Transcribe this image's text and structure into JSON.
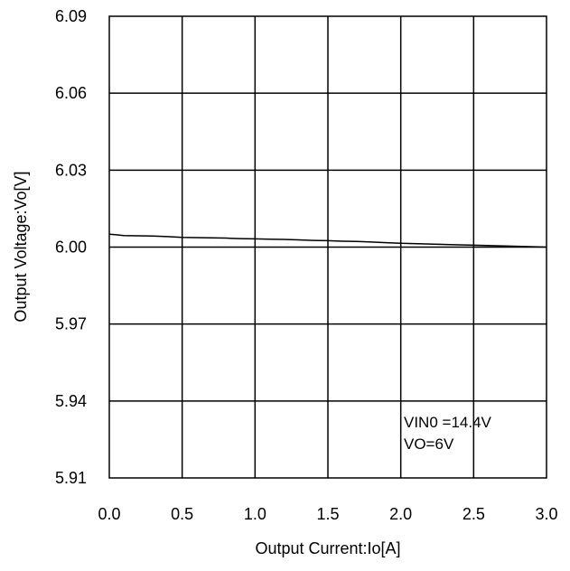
{
  "chart_data": {
    "type": "line",
    "title": "",
    "xlabel": "Output Current:Io[A]",
    "ylabel": "Output Voltage:Vo[V]",
    "xlim": [
      0,
      3.0
    ],
    "ylim": [
      5.91,
      6.09
    ],
    "x_ticks": [
      "0.0",
      "0.5",
      "1.0",
      "1.5",
      "2.0",
      "2.5",
      "3.0"
    ],
    "x_tick_values": [
      0,
      0.5,
      1.0,
      1.5,
      2.0,
      2.5,
      3.0
    ],
    "y_ticks": [
      "6.09",
      "6.06",
      "6.03",
      "6.00",
      "5.97",
      "5.94",
      "5.91"
    ],
    "y_tick_values": [
      6.09,
      6.06,
      6.03,
      6.0,
      5.97,
      5.94,
      5.91
    ],
    "grid": true,
    "legend": "none",
    "annotations": [
      "VIN0 =14.4V",
      "VO=6V"
    ],
    "series": [
      {
        "x": [
          0.0,
          0.05,
          0.1,
          0.2,
          0.3,
          0.4,
          0.5,
          0.6,
          0.7,
          0.8,
          0.9,
          1.0,
          1.1,
          1.2,
          1.3,
          1.4,
          1.5,
          1.6,
          1.7,
          1.8,
          1.9,
          2.0,
          2.2,
          2.4,
          2.6,
          2.8,
          3.0
        ],
        "y": [
          6.005,
          6.0048,
          6.0045,
          6.0044,
          6.0043,
          6.0041,
          6.0038,
          6.0037,
          6.0036,
          6.0035,
          6.0033,
          6.0032,
          6.0031,
          6.003,
          6.0028,
          6.0026,
          6.0025,
          6.0023,
          6.0022,
          6.002,
          6.0017,
          6.0015,
          6.0012,
          6.0009,
          6.0006,
          6.0003,
          6.0
        ]
      }
    ],
    "colors": {
      "line": "#000000",
      "grid": "#000000",
      "background": "#ffffff"
    }
  }
}
